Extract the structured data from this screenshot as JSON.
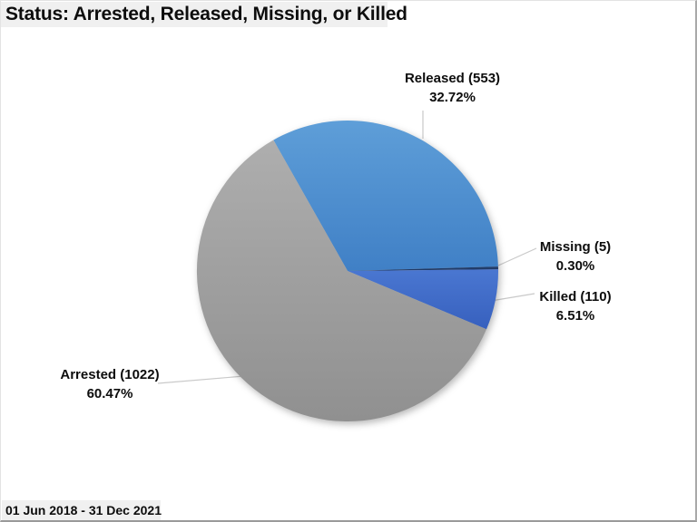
{
  "title": "Status: Arrested, Released, Missing, or Killed",
  "footer": "01 Jun 2018 - 31 Dec 2021",
  "chart_data": {
    "type": "pie",
    "title": "Status: Arrested, Released, Missing, or Killed",
    "period_label": "01 Jun 2018 - 31 Dec 2021",
    "legend_position": "none",
    "direction": "clockwise",
    "start_angle_deg": -29.5,
    "slices": [
      {
        "label": "Released",
        "value": 553,
        "pct": 32.72,
        "label_line1": "Released (553)",
        "label_line2": "32.72%",
        "color_top": "#5e9ed8",
        "color_bottom": "#4080c6"
      },
      {
        "label": "Missing",
        "value": 5,
        "pct": 0.3,
        "label_line1": "Missing (5)",
        "label_line2": "0.30%",
        "color_top": "#24406e",
        "color_bottom": "#1f3864"
      },
      {
        "label": "Killed",
        "value": 110,
        "pct": 6.51,
        "label_line1": "Killed (110)",
        "label_line2": "6.51%",
        "color_top": "#4a77d1",
        "color_bottom": "#3760be"
      },
      {
        "label": "Arrested",
        "value": 1022,
        "pct": 60.47,
        "label_line1": "Arrested (1022)",
        "label_line2": "60.47%",
        "color_top": "#aeaeae",
        "color_bottom": "#909090"
      }
    ]
  }
}
